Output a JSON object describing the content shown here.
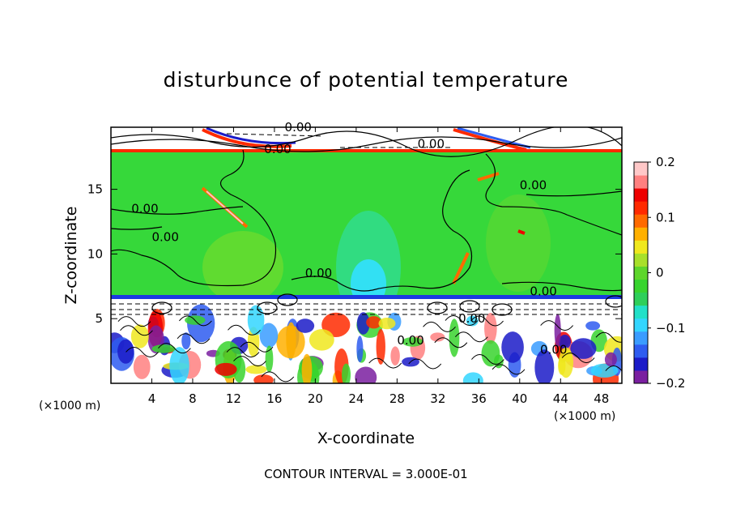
{
  "chart_data": {
    "type": "heatmap",
    "title": "disturbunce of potential temperature",
    "xlabel": "X-coordinate",
    "ylabel": "Z-coordinate",
    "x_unit": "(×1000 m)",
    "y_unit": "(×1000 m)",
    "xlim": [
      0,
      50
    ],
    "ylim": [
      0,
      19.8
    ],
    "x_ticks": [
      4,
      8,
      12,
      16,
      20,
      24,
      28,
      32,
      36,
      40,
      44,
      48
    ],
    "y_ticks": [
      5,
      10,
      15
    ],
    "colorbar": {
      "ticks": [
        {
          "value": 0.2,
          "label": "0.2"
        },
        {
          "value": 0.1,
          "label": "0.1"
        },
        {
          "value": 0,
          "label": "0"
        },
        {
          "value": -0.1,
          "label": "−0.1"
        },
        {
          "value": -0.2,
          "label": "−0.2"
        }
      ],
      "range": [
        -0.2,
        0.2
      ],
      "colors": [
        "#7a1fa0",
        "#1b1bc8",
        "#2e5cf0",
        "#3a9cff",
        "#33d6ff",
        "#22e0c8",
        "#2ecf5a",
        "#38d42e",
        "#5ed62c",
        "#a8e02a",
        "#f0e81e",
        "#ffb000",
        "#ff6a00",
        "#ff2a00",
        "#ee0000",
        "#ff8080",
        "#ffc8c8"
      ]
    },
    "contour_interval": "3.000E-01",
    "contour_labels": [
      "0.00",
      "0.00",
      "0.00",
      "0.00",
      "0.00",
      "0.00",
      "0.00",
      "0.00",
      "0.00",
      "0.00",
      "0.00"
    ],
    "regions": {
      "upper_layer_z": [
        18.0,
        19.8
      ],
      "stratified_band_z": [
        6.5,
        18.0
      ],
      "band_value": 0.0,
      "lower_turbulent_z": [
        0,
        6.5
      ]
    }
  },
  "footer": "CONTOUR INTERVAL = 3.000E-01"
}
